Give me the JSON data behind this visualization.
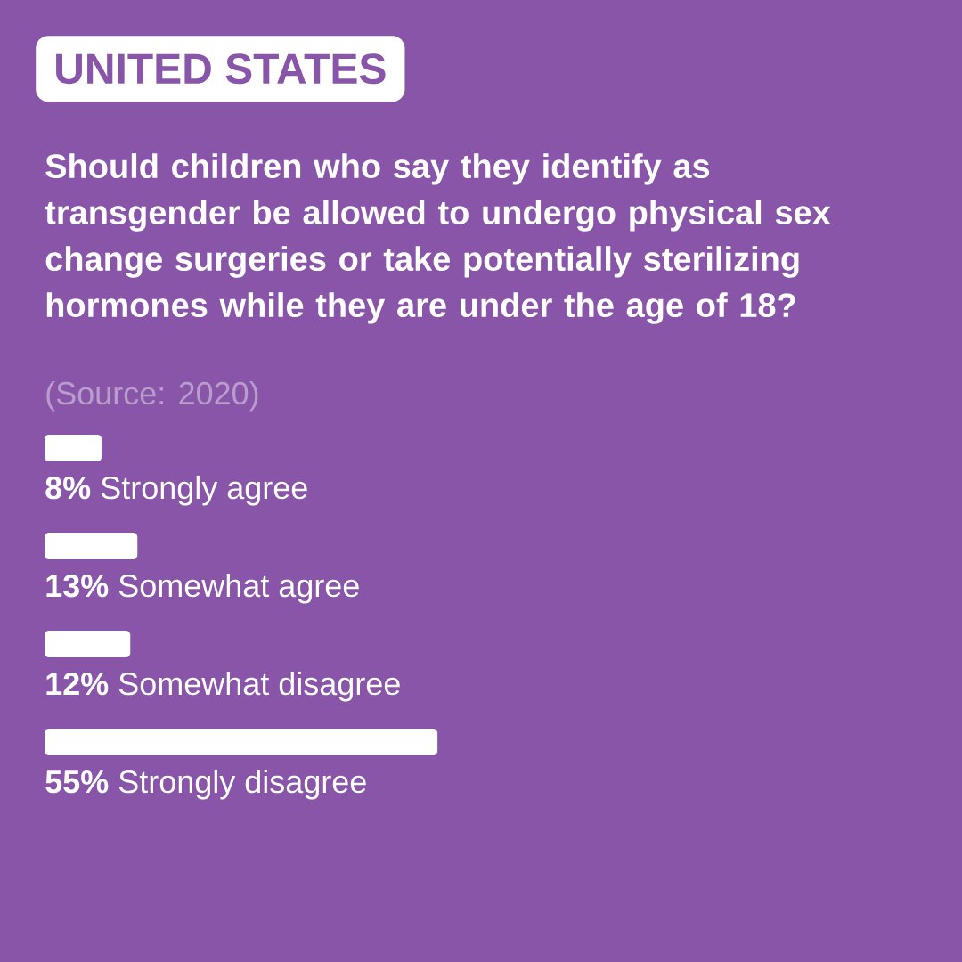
{
  "chart_data": {
    "type": "bar",
    "orientation": "horizontal",
    "title": "UNITED STATES",
    "subtitle": "Should children who say they identify as transgender be allowed to undergo physical sex change surgeries or take potentially sterilizing hormones while they are under the age of 18?",
    "annotations": [
      "(Source: 2020)"
    ],
    "categories": [
      "Strongly agree",
      "Somewhat agree",
      "Somewhat disagree",
      "Strongly disagree"
    ],
    "values": [
      8,
      13,
      12,
      55
    ],
    "value_labels": [
      "8%",
      "13%",
      "12%",
      "55%"
    ],
    "color": "#ffffff"
  }
}
